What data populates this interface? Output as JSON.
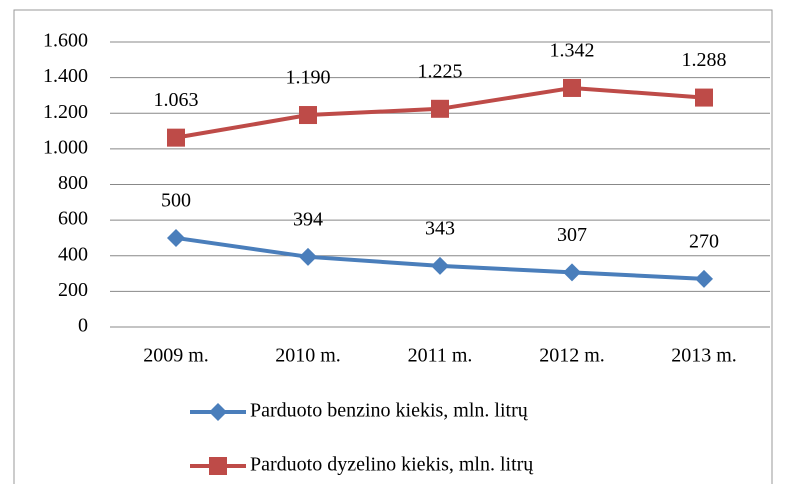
{
  "chart_data": {
    "type": "line",
    "categories": [
      "2009 m.",
      "2010 m.",
      "2011 m.",
      "2012 m.",
      "2013 m."
    ],
    "series": [
      {
        "name": "Parduoto benzino kiekis, mln. litrų",
        "color": "#4a7ebb",
        "marker": "diamond",
        "values": [
          500,
          394,
          343,
          307,
          270
        ],
        "value_labels": [
          "500",
          "394",
          "343",
          "307",
          "270"
        ]
      },
      {
        "name": "Parduoto dyzelino kiekis, mln. litrų",
        "color": "#be4b48",
        "marker": "square",
        "values": [
          1063,
          1190,
          1225,
          1342,
          1288
        ],
        "value_labels": [
          "1.063",
          "1.190",
          "1.225",
          "1.342",
          "1.288"
        ]
      }
    ],
    "ylim": [
      0,
      1600
    ],
    "yticks": [
      0,
      200,
      400,
      600,
      800,
      {
        "value": 1000,
        "label": "1.000"
      },
      {
        "value": 1200,
        "label": "1.200"
      },
      {
        "value": 1400,
        "label": "1.400"
      },
      {
        "value": 1600,
        "label": "1.600"
      }
    ],
    "grid": true,
    "legend": "bottom"
  }
}
